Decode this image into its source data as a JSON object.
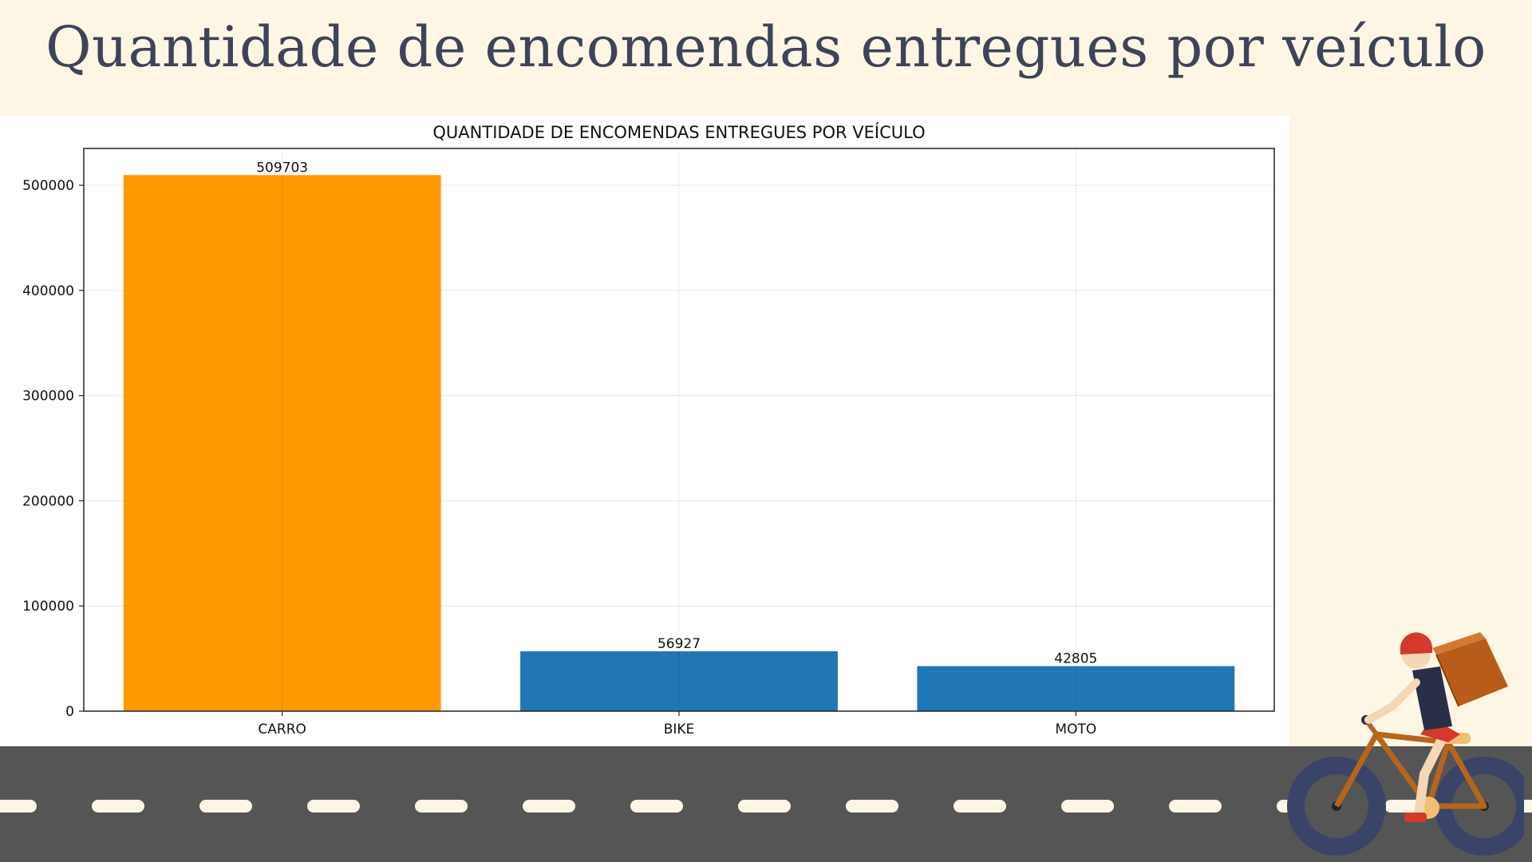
{
  "page": {
    "title": "Quantidade de encomendas entregues por veículo"
  },
  "chart_data": {
    "type": "bar",
    "title": "QUANTIDADE DE ENCOMENDAS ENTREGUES POR VEÍCULO",
    "xlabel": "",
    "ylabel": "",
    "categories": [
      "CARRO",
      "BIKE",
      "MOTO"
    ],
    "values": [
      509703,
      56927,
      42805
    ],
    "value_labels": [
      "509703",
      "56927",
      "42805"
    ],
    "bar_colors": [
      "#ff9900",
      "#2177b4",
      "#2177b4"
    ],
    "ylim": [
      0,
      535000
    ],
    "yticks": [
      0,
      100000,
      200000,
      300000,
      400000,
      500000
    ],
    "ytick_labels": [
      "0",
      "100000",
      "200000",
      "300000",
      "400000",
      "500000"
    ],
    "grid": true,
    "legend": "none"
  },
  "theme": {
    "background": "#fdf6e4",
    "title_color": "#3d4459",
    "road_color": "#555555",
    "road_dash_color": "#fdf6e4"
  },
  "illustration": {
    "icon": "delivery-cyclist-icon"
  }
}
